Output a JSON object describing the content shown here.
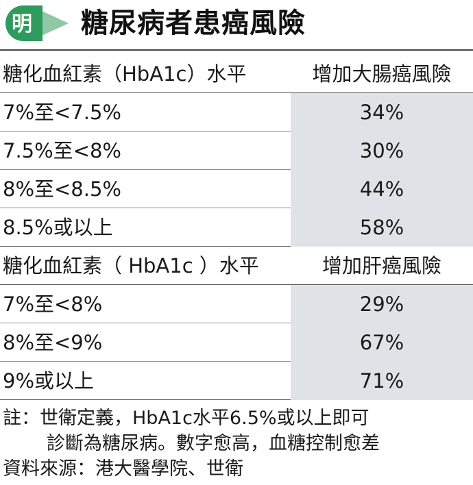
{
  "header": {
    "logo_char": "明",
    "title": "糖尿病者患癌風險",
    "colors": {
      "logo_green": "#2f9a5e",
      "logo_arrow": "#8ec8a4",
      "shade": "#dfe3e7"
    }
  },
  "chart_data": {
    "type": "table",
    "title": "糖尿病者患癌風險",
    "sections": [
      {
        "header": {
          "left": "糖化血紅素（HbA1c）水平",
          "right": "增加大腸癌風險"
        },
        "rows": [
          {
            "level": "7%至<7.5%",
            "risk": "34%"
          },
          {
            "level": "7.5%至<8%",
            "risk": "30%"
          },
          {
            "level": "8%至<8.5%",
            "risk": "44%"
          },
          {
            "level": "8.5%或以上",
            "risk": "58%"
          }
        ]
      },
      {
        "header": {
          "left": "糖化血紅素（ HbA1c ）水平",
          "right": "增加肝癌風險"
        },
        "rows": [
          {
            "level": "7%至<8%",
            "risk": "29%"
          },
          {
            "level": "8%至<9%",
            "risk": "67%"
          },
          {
            "level": "9%或以上",
            "risk": "71%"
          }
        ]
      }
    ]
  },
  "notes": {
    "line1": "註：世衛定義，HbA1c水平6.5%或以上即可",
    "line2": "診斷為糖尿病。數字愈高，血糖控制愈差",
    "source": "資料來源：港大醫學院、世衛"
  }
}
